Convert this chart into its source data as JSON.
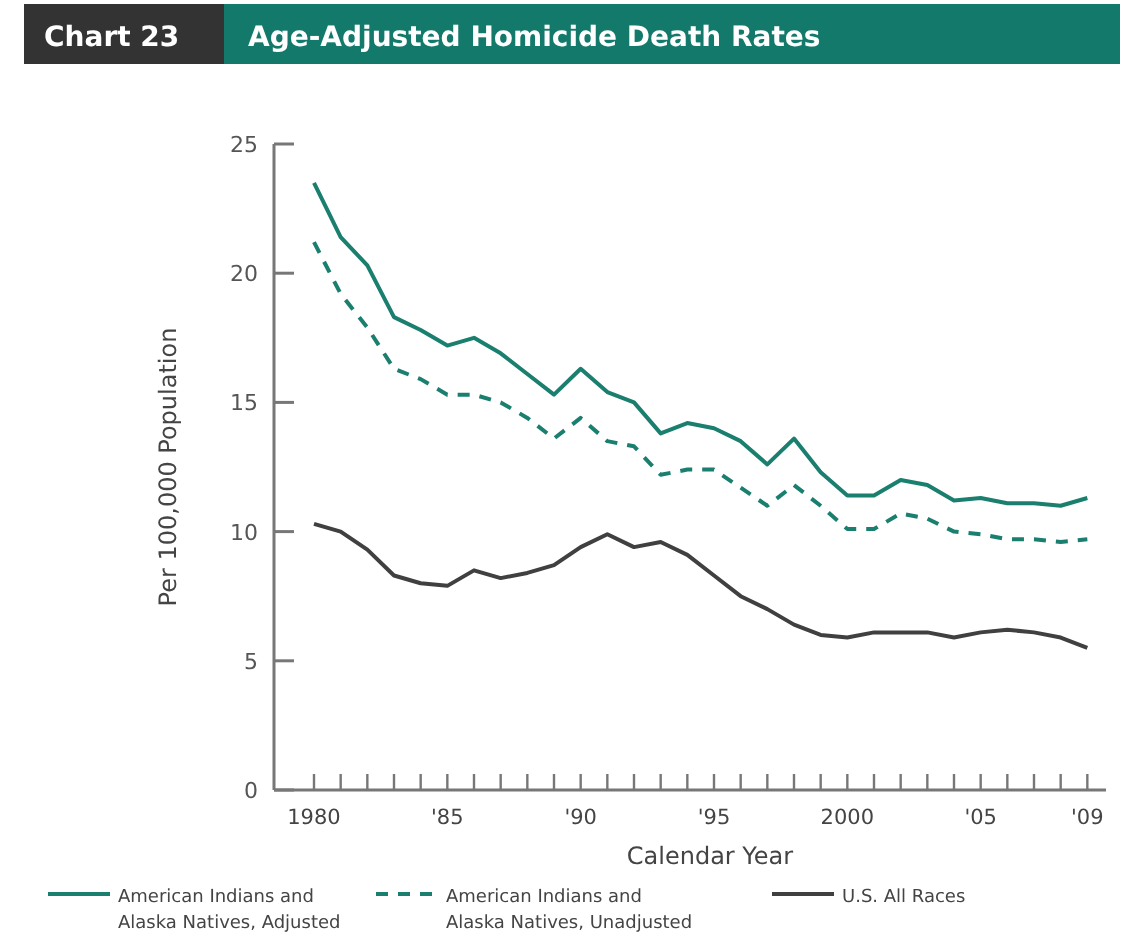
{
  "chart_data": {
    "type": "line",
    "title": "Age-Adjusted Homicide Death Rates",
    "annotations": [
      "Chart 23"
    ],
    "xlabel": "Calendar Year",
    "ylabel": "Per 100,000 Population",
    "x": [
      1980,
      1981,
      1982,
      1983,
      1984,
      1985,
      1986,
      1987,
      1988,
      1989,
      1990,
      1991,
      1992,
      1993,
      1994,
      1995,
      1996,
      1997,
      1998,
      1999,
      2000,
      2001,
      2002,
      2003,
      2004,
      2005,
      2006,
      2007,
      2008,
      2009
    ],
    "series": [
      {
        "name": "American Indians and Alaska Natives, Adjusted",
        "color": "#1a7f6e",
        "line_style": "solid",
        "values": [
          23.5,
          21.4,
          20.3,
          18.3,
          17.8,
          17.2,
          17.5,
          16.9,
          16.1,
          15.3,
          16.3,
          15.4,
          15.0,
          13.8,
          14.2,
          14.0,
          13.5,
          12.6,
          13.6,
          12.3,
          11.4,
          11.4,
          12.0,
          11.8,
          11.2,
          11.3,
          11.1,
          11.1,
          11.0,
          11.3
        ]
      },
      {
        "name": "American Indians and Alaska Natives, Unadjusted",
        "color": "#1a7f6e",
        "line_style": "dashed",
        "values": [
          21.2,
          19.2,
          17.9,
          16.3,
          15.9,
          15.3,
          15.3,
          15.0,
          14.4,
          13.6,
          14.4,
          13.5,
          13.3,
          12.2,
          12.4,
          12.4,
          11.7,
          11.0,
          11.8,
          11.0,
          10.1,
          10.1,
          10.7,
          10.5,
          10.0,
          9.9,
          9.7,
          9.7,
          9.6,
          9.7
        ]
      },
      {
        "name": "U.S. All Races",
        "color": "#404040",
        "line_style": "solid",
        "values": [
          10.3,
          10.0,
          9.3,
          8.3,
          8.0,
          7.9,
          8.5,
          8.2,
          8.4,
          8.7,
          9.4,
          9.9,
          9.4,
          9.6,
          9.1,
          8.3,
          7.5,
          7.0,
          6.4,
          6.0,
          5.9,
          6.1,
          6.1,
          6.1,
          5.9,
          6.1,
          6.2,
          6.1,
          5.9,
          5.5
        ]
      }
    ],
    "xlim": [
      1978.5,
      2009.7
    ],
    "ylim": [
      0,
      25
    ],
    "yticks": [
      0,
      5,
      10,
      15,
      20,
      25
    ],
    "xticks": [
      {
        "value": 1980,
        "label": "1980"
      },
      {
        "value": 1981,
        "label": null
      },
      {
        "value": 1982,
        "label": null
      },
      {
        "value": 1983,
        "label": null
      },
      {
        "value": 1984,
        "label": null
      },
      {
        "value": 1985,
        "label": "'85"
      },
      {
        "value": 1986,
        "label": null
      },
      {
        "value": 1987,
        "label": null
      },
      {
        "value": 1988,
        "label": null
      },
      {
        "value": 1989,
        "label": null
      },
      {
        "value": 1990,
        "label": "'90"
      },
      {
        "value": 1991,
        "label": null
      },
      {
        "value": 1992,
        "label": null
      },
      {
        "value": 1993,
        "label": null
      },
      {
        "value": 1994,
        "label": null
      },
      {
        "value": 1995,
        "label": "'95"
      },
      {
        "value": 1996,
        "label": null
      },
      {
        "value": 1997,
        "label": null
      },
      {
        "value": 1998,
        "label": null
      },
      {
        "value": 1999,
        "label": null
      },
      {
        "value": 2000,
        "label": "2000"
      },
      {
        "value": 2001,
        "label": null
      },
      {
        "value": 2002,
        "label": null
      },
      {
        "value": 2003,
        "label": null
      },
      {
        "value": 2004,
        "label": null
      },
      {
        "value": 2005,
        "label": "'05"
      },
      {
        "value": 2006,
        "label": null
      },
      {
        "value": 2007,
        "label": null
      },
      {
        "value": 2008,
        "label": null
      },
      {
        "value": 2009,
        "label": "'09"
      }
    ],
    "grid": false,
    "legend": "bottom",
    "marker": "none"
  }
}
